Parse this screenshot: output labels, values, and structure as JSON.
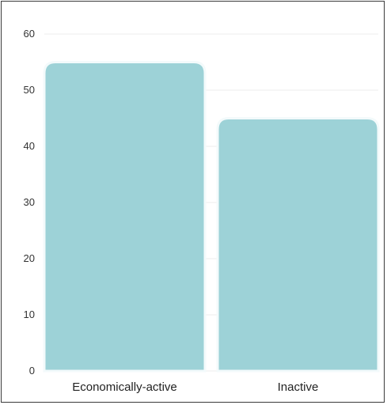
{
  "chart_data": {
    "type": "bar",
    "categories": [
      "Economically-active",
      "Inactive"
    ],
    "values": [
      55,
      45
    ],
    "ylim": [
      0,
      60
    ],
    "yticks": [
      0,
      10,
      20,
      30,
      40,
      50,
      60
    ],
    "grid": true,
    "legend": "none",
    "title": "",
    "xlabel": "",
    "ylabel": ""
  },
  "colors": {
    "bar": "#9dd2d7",
    "grid": "#ececec",
    "background": "#ffffff"
  }
}
